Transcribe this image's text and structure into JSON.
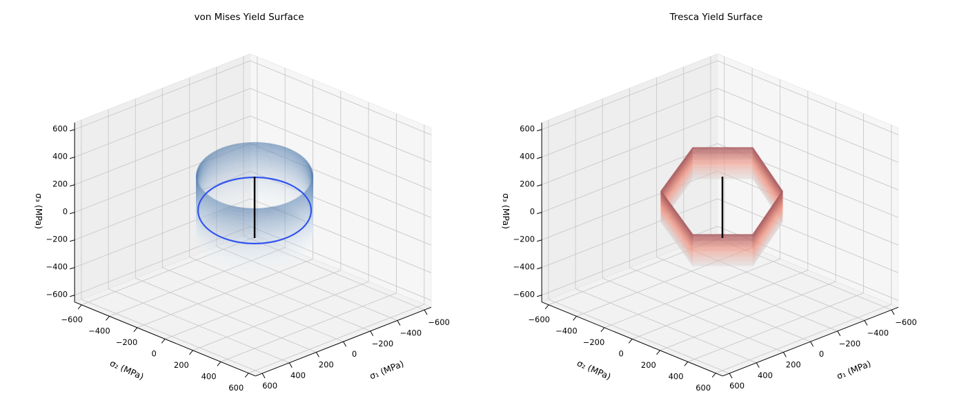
{
  "chart_data": [
    {
      "type": "surface3d",
      "title": "von Mises Yield Surface",
      "xlabel": "σ₁ (MPa)",
      "ylabel": "σ₂ (MPa)",
      "zlabel": "σ₃ (MPa)",
      "xlim": [
        -600,
        600
      ],
      "ylim": [
        -600,
        600
      ],
      "zlim": [
        -600,
        600
      ],
      "ticks": [
        -600,
        -400,
        -200,
        0,
        200,
        400,
        600
      ],
      "tick_labels": [
        "−600",
        "−400",
        "−200",
        "0",
        "200",
        "400",
        "600"
      ],
      "grid": true,
      "surface": "cylinder",
      "colormap": "Blues",
      "highlight_color": "#3355ee",
      "axis_line_color": "#000000"
    },
    {
      "type": "surface3d",
      "title": "Tresca Yield Surface",
      "xlabel": "σ₁ (MPa)",
      "ylabel": "σ₂ (MPa)",
      "zlabel": "σ₃ (MPa)",
      "xlim": [
        -600,
        600
      ],
      "ylim": [
        -600,
        600
      ],
      "zlim": [
        -600,
        600
      ],
      "ticks": [
        -600,
        -400,
        -200,
        0,
        200,
        400,
        600
      ],
      "tick_labels": [
        "−600",
        "−400",
        "−200",
        "0",
        "200",
        "400",
        "600"
      ],
      "grid": true,
      "surface": "hexagonal prism",
      "colormap": "Reds",
      "axis_line_color": "#000000"
    }
  ]
}
